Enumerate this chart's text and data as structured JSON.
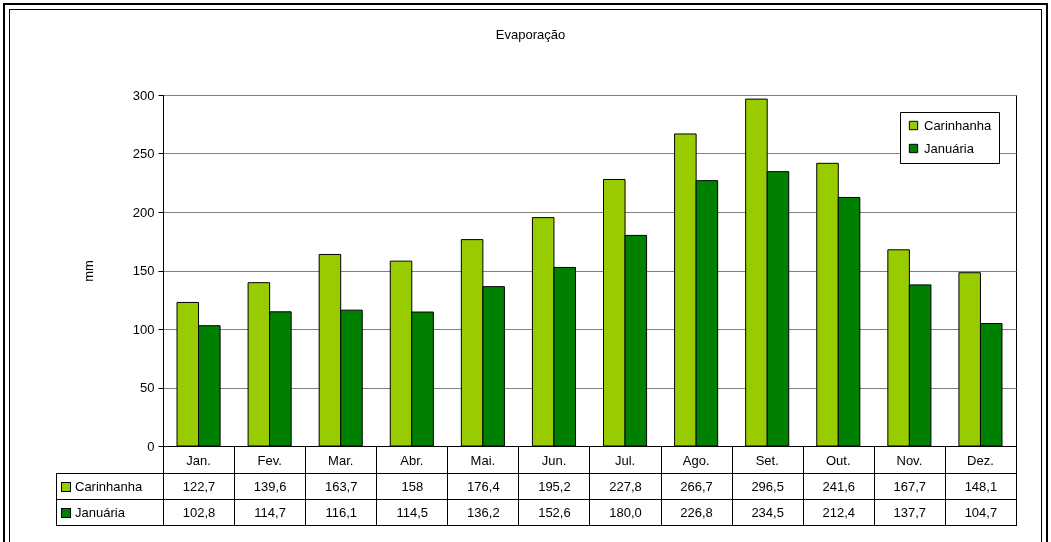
{
  "chart_data": {
    "type": "bar",
    "title": "Evaporação",
    "ylabel": "mm",
    "categories": [
      "Jan.",
      "Fev.",
      "Mar.",
      "Abr.",
      "Mai.",
      "Jun.",
      "Jul.",
      "Ago.",
      "Set.",
      "Out.",
      "Nov.",
      "Dez."
    ],
    "series": [
      {
        "name": "Carinhanha",
        "color": "#99cc00",
        "values": [
          122.7,
          139.6,
          163.7,
          158,
          176.4,
          195.2,
          227.8,
          266.7,
          296.5,
          241.6,
          167.7,
          148.1
        ],
        "value_labels": [
          "122,7",
          "139,6",
          "163,7",
          "158",
          "176,4",
          "195,2",
          "227,8",
          "266,7",
          "296,5",
          "241,6",
          "167,7",
          "148,1"
        ]
      },
      {
        "name": "Januária",
        "color": "#008000",
        "values": [
          102.8,
          114.7,
          116.1,
          114.5,
          136.2,
          152.6,
          180.0,
          226.8,
          234.5,
          212.4,
          137.7,
          104.7
        ],
        "value_labels": [
          "102,8",
          "114,7",
          "116,1",
          "114,5",
          "136,2",
          "152,6",
          "180,0",
          "226,8",
          "234,5",
          "212,4",
          "137,7",
          "104,7"
        ]
      }
    ],
    "ylim": [
      0,
      300
    ],
    "yticks": [
      0,
      50,
      100,
      150,
      200,
      250,
      300
    ],
    "grid": "y",
    "legend": "top right"
  }
}
